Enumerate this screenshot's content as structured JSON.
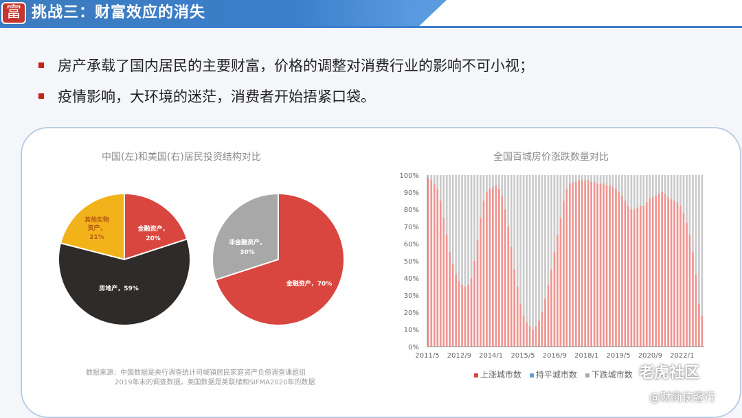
{
  "header": {
    "logo_glyph": "富",
    "title": "挑战三：财富效应的消失"
  },
  "bullets": [
    "房产承载了国内居民的主要财富，价格的调整对消费行业的影响不可小视；",
    "疫情影响，大环境的迷茫，消费者开始捂紧口袋。"
  ],
  "colors": {
    "accent_red": "#d9463f",
    "dark": "#2e2b28",
    "yellow": "#f2b31a",
    "gray": "#a8a8a8",
    "header_blue": "#3b7fcc"
  },
  "chart_data": [
    {
      "type": "pie",
      "title": "中国(左)和美国(右)居民投资结构对比",
      "pies": [
        {
          "slices": [
            {
              "label": "金融资产，",
              "value_label": "20%",
              "value": 20,
              "color": "#d9463f"
            },
            {
              "label": "房地产，59%",
              "value": 59,
              "color": "#2e2b28"
            },
            {
              "label": "其他实物资产，",
              "value_label": "21%",
              "value": 21,
              "color": "#f2b31a"
            }
          ]
        },
        {
          "slices": [
            {
              "label": "金融资产，70%",
              "value": 70,
              "color": "#d9463f"
            },
            {
              "label": "非金融资产，",
              "value_label": "30%",
              "value": 30,
              "color": "#a8a8a8"
            }
          ]
        }
      ],
      "source_line1": "数据来源：中国数据是央行调查统计司城镇居民家庭资产负债调查课题组",
      "source_line2": "2019年末的调查数据，美国数据是美联储和SIFMA2020年的数据"
    },
    {
      "type": "area",
      "title": "全国百城房价涨跌数量对比",
      "yticks": [
        "0%",
        "10%",
        "20%",
        "30%",
        "40%",
        "50%",
        "60%",
        "70%",
        "80%",
        "90%",
        "100%"
      ],
      "xticks": [
        "2011/5",
        "2012/9",
        "2014/1",
        "2015/5",
        "2016/9",
        "2018/1",
        "2019/5",
        "2020/9",
        "2022/1"
      ],
      "ylim": [
        0,
        100
      ],
      "series": [
        {
          "name": "上涨城市数",
          "color": "#e88a86"
        },
        {
          "name": "持平城市数",
          "color": "#6b9ad6"
        },
        {
          "name": "下跌城市数",
          "color": "#bdbdbd"
        }
      ],
      "up_share_percent": [
        98,
        97,
        95,
        92,
        85,
        75,
        65,
        55,
        48,
        42,
        38,
        36,
        35,
        36,
        40,
        50,
        62,
        75,
        85,
        90,
        92,
        93,
        94,
        92,
        88,
        80,
        70,
        58,
        45,
        35,
        25,
        18,
        14,
        12,
        10,
        12,
        15,
        20,
        28,
        36,
        45,
        55,
        65,
        75,
        85,
        92,
        95,
        96,
        96,
        97,
        97,
        97,
        97,
        96,
        96,
        95,
        95,
        95,
        94,
        94,
        93,
        92,
        90,
        88,
        85,
        82,
        80,
        80,
        81,
        82,
        82,
        84,
        86,
        87,
        88,
        89,
        90,
        89,
        87,
        86,
        85,
        84,
        82,
        78,
        72,
        65,
        55,
        42,
        25,
        18
      ]
    }
  ],
  "watermark": {
    "line1": "老虎社区",
    "line2": "@财商侠客行"
  }
}
